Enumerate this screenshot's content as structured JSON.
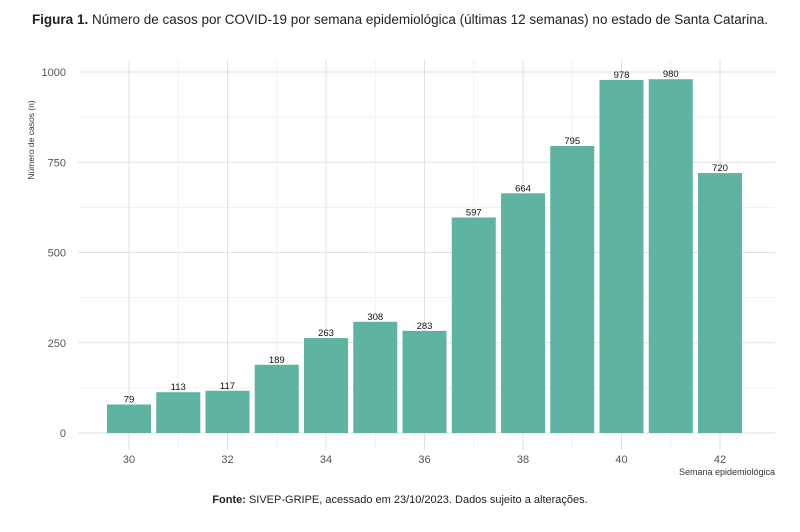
{
  "caption": {
    "label": "Figura 1.",
    "text": " Número de casos por COVID-19 por semana epidemiológica (últimas 12 semanas) no estado de Santa Catarina."
  },
  "source": {
    "label": "Fonte:",
    "text": " SIVEP-GRIPE, acessado em 23/10/2023. Dados sujeito a alterações."
  },
  "chart_data": {
    "type": "bar",
    "x": [
      30,
      31,
      32,
      33,
      34,
      35,
      36,
      37,
      38,
      39,
      40,
      41,
      42
    ],
    "values": [
      79,
      113,
      117,
      189,
      263,
      308,
      283,
      597,
      664,
      795,
      978,
      980,
      720
    ],
    "xlabel": "Semana epidemiológica",
    "ylabel": "Número de casos (n)",
    "xticks": [
      30,
      32,
      34,
      36,
      38,
      40,
      42
    ],
    "yticks": [
      0,
      250,
      500,
      750,
      1000
    ],
    "xlim": [
      29,
      43
    ],
    "ylim": [
      0,
      1060
    ],
    "grid": true,
    "color": "#5fb3a1"
  }
}
